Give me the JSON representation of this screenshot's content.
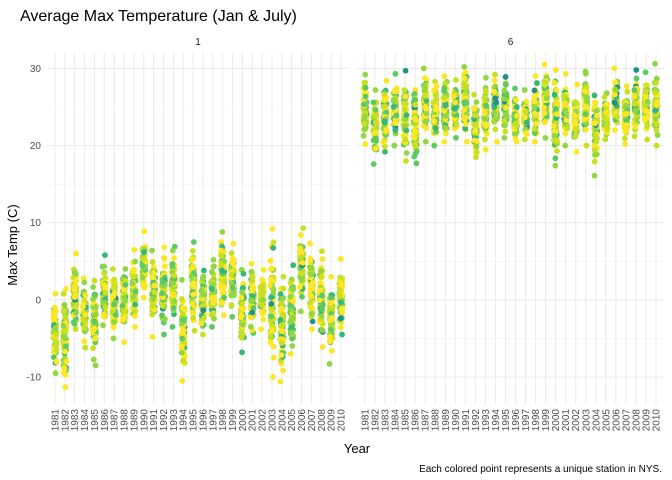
{
  "chart_data": {
    "type": "scatter",
    "title": "Average Max Temperature (Jan & July)",
    "xlabel": "Year",
    "ylabel": "Max Temp (C)",
    "caption": "Each colored point represents a unique station in NYS.",
    "ylim": [
      -13.5,
      32
    ],
    "yticks": [
      -10,
      0,
      10,
      20,
      30
    ],
    "grid": true,
    "legend": "none",
    "years": [
      1981,
      1982,
      1983,
      1984,
      1985,
      1986,
      1987,
      1988,
      1989,
      1990,
      1991,
      1992,
      1993,
      1994,
      1995,
      1996,
      1997,
      1998,
      1999,
      2000,
      2001,
      2002,
      2003,
      2004,
      2005,
      2006,
      2007,
      2008,
      2009,
      2010
    ],
    "palette": [
      "#21908C",
      "#35B779",
      "#5DC963",
      "#90D743",
      "#C8E020",
      "#FDE725"
    ],
    "panels": [
      {
        "label": "1",
        "ranges": [
          [
            -9.5,
            0.8
          ],
          [
            -11.3,
            1.4
          ],
          [
            -3.8,
            6
          ],
          [
            -6.2,
            2.8
          ],
          [
            -8.5,
            2.5
          ],
          [
            -3.3,
            5.8
          ],
          [
            -5,
            4
          ],
          [
            -5.5,
            4
          ],
          [
            -3.5,
            6.5
          ],
          [
            0.3,
            8.9
          ],
          [
            -4.8,
            6.4
          ],
          [
            -4.5,
            6.8
          ],
          [
            -3.5,
            6.9
          ],
          [
            -10.5,
            2.6
          ],
          [
            -4,
            7.5
          ],
          [
            -4.5,
            3.8
          ],
          [
            -3.5,
            5.2
          ],
          [
            -2,
            8.8
          ],
          [
            -2.2,
            7.3
          ],
          [
            -6.8,
            3.9
          ],
          [
            -4.3,
            4.7
          ],
          [
            -3.8,
            3.9
          ],
          [
            -10,
            9.2
          ],
          [
            -10.6,
            3
          ],
          [
            -7,
            4.5
          ],
          [
            -1.5,
            9.3
          ],
          [
            -3.8,
            7.3
          ],
          [
            -6.1,
            6.3
          ],
          [
            -8.3,
            3
          ],
          [
            -4.5,
            5.3
          ]
        ],
        "centers": [
          -4.5,
          -4.5,
          0.5,
          -1.5,
          -2.8,
          0.5,
          -0.5,
          -0.5,
          1.5,
          4.2,
          0.8,
          1.2,
          1.8,
          -3.5,
          2,
          -0.2,
          0.8,
          3.2,
          2.8,
          -1.2,
          0.2,
          0.2,
          -0.5,
          -3.8,
          -1,
          4.2,
          1.8,
          0.5,
          -1.8,
          0.5
        ]
      },
      {
        "label": "6",
        "ranges": [
          [
            20.2,
            29.2
          ],
          [
            17.6,
            27.2
          ],
          [
            19.2,
            28.4
          ],
          [
            20,
            29.3
          ],
          [
            18,
            29.7
          ],
          [
            17.7,
            27.2
          ],
          [
            20.5,
            30
          ],
          [
            20,
            28.3
          ],
          [
            20.5,
            29
          ],
          [
            21,
            28.5
          ],
          [
            20.5,
            30.2
          ],
          [
            18.5,
            26.6
          ],
          [
            19.5,
            28.8
          ],
          [
            20.5,
            29.2
          ],
          [
            21,
            28.9
          ],
          [
            20.5,
            27.4
          ],
          [
            20.8,
            27.2
          ],
          [
            20.5,
            29
          ],
          [
            21,
            30.5
          ],
          [
            17.4,
            29.8
          ],
          [
            20,
            29.3
          ],
          [
            19.2,
            27.9
          ],
          [
            20,
            29.6
          ],
          [
            16.1,
            26.5
          ],
          [
            20.8,
            26.8
          ],
          [
            22,
            30
          ],
          [
            20.2,
            27.7
          ],
          [
            21.2,
            29.8
          ],
          [
            20.8,
            29.5
          ],
          [
            20,
            30.6
          ]
        ],
        "centers": [
          24.5,
          22.5,
          24.2,
          25,
          23.5,
          22.5,
          25,
          24.5,
          24.8,
          25,
          25.2,
          22.5,
          24.2,
          24.8,
          25.2,
          23.5,
          24,
          24.8,
          26,
          23.8,
          24.5,
          23.2,
          24.5,
          22.8,
          24,
          26,
          24,
          25.2,
          25,
          25.5
        ]
      }
    ]
  }
}
